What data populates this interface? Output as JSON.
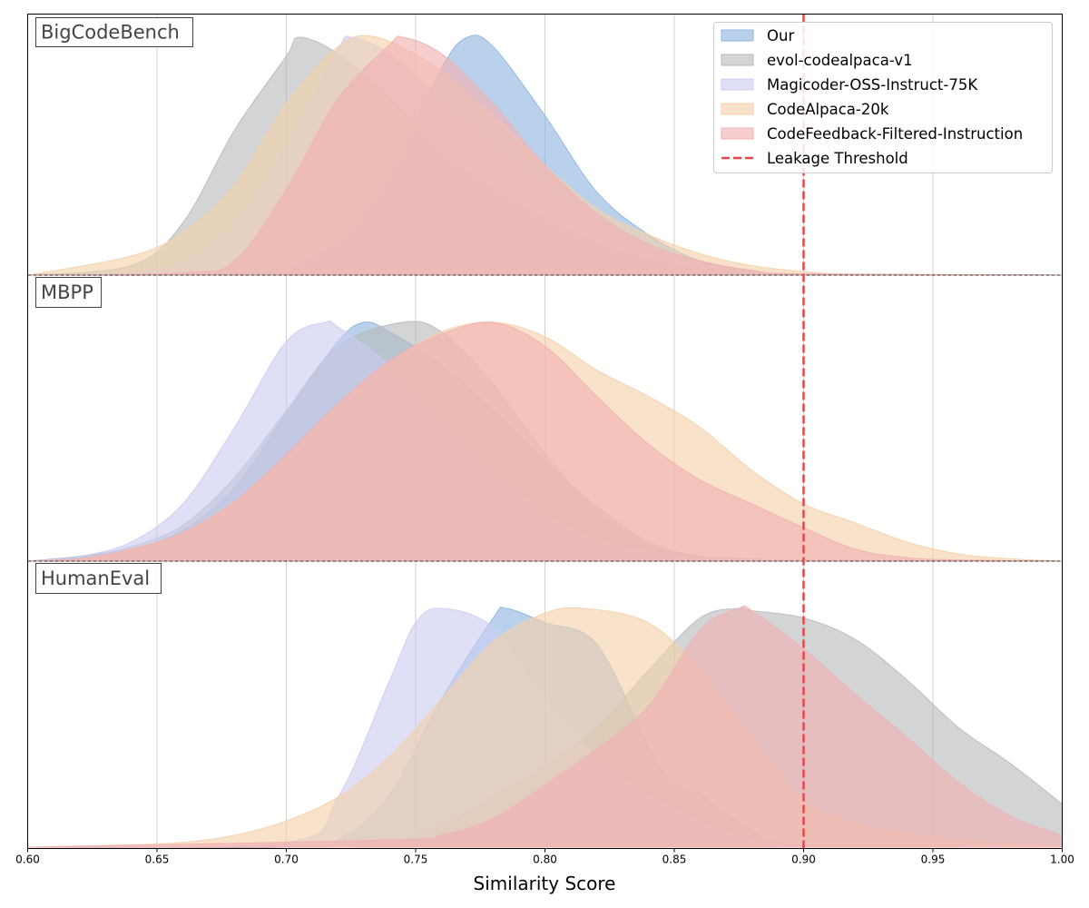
{
  "chart_data": {
    "type": "area",
    "kind": "ridgeline-density",
    "xlabel": "Similarity Score",
    "xlim": [
      0.6,
      1.0
    ],
    "xticks": [
      "0.60",
      "0.65",
      "0.70",
      "0.75",
      "0.80",
      "0.85",
      "0.90",
      "0.95",
      "1.00"
    ],
    "grid": "vertical",
    "legend_position": "top-right",
    "threshold": {
      "name": "Leakage Threshold",
      "x": 0.9,
      "color": "#e8474a",
      "style": "dashed"
    },
    "series_styles": [
      {
        "name": "Our",
        "color": "#8fb4e0"
      },
      {
        "name": "evol-codealpaca-v1",
        "color": "#b8babc"
      },
      {
        "name": "Magicoder-OSS-Instruct-75K",
        "color": "#cccdf0"
      },
      {
        "name": "CodeAlpaca-20k",
        "color": "#f4d0aa"
      },
      {
        "name": "CodeFeedback-Filtered-Instruction",
        "color": "#f2b0b2"
      }
    ],
    "panels": [
      {
        "name": "BigCodeBench",
        "series": [
          {
            "name": "Our",
            "x": [
              0.6,
              0.66,
              0.68,
              0.7,
              0.72,
              0.74,
              0.76,
              0.77,
              0.78,
              0.8,
              0.82,
              0.84,
              0.86,
              0.88,
              0.9,
              1.0
            ],
            "values": [
              0,
              0,
              0.01,
              0.03,
              0.15,
              0.42,
              0.87,
              1.0,
              0.96,
              0.67,
              0.35,
              0.17,
              0.06,
              0.02,
              0.005,
              0
            ]
          },
          {
            "name": "evol-codealpaca-v1",
            "x": [
              0.6,
              0.64,
              0.66,
              0.68,
              0.7,
              0.705,
              0.72,
              0.74,
              0.76,
              0.78,
              0.8,
              0.82,
              0.84,
              0.86,
              0.88,
              0.9,
              1.0
            ],
            "values": [
              0,
              0.04,
              0.22,
              0.61,
              0.92,
              1.0,
              0.93,
              0.74,
              0.52,
              0.37,
              0.24,
              0.14,
              0.07,
              0.03,
              0.01,
              0.005,
              0
            ]
          },
          {
            "name": "Magicoder-OSS-Instruct-75K",
            "x": [
              0.6,
              0.64,
              0.66,
              0.68,
              0.7,
              0.72,
              0.725,
              0.74,
              0.76,
              0.78,
              0.8,
              0.82,
              0.84,
              0.86,
              0.88,
              0.9,
              1.0
            ],
            "values": [
              0,
              0.01,
              0.06,
              0.22,
              0.55,
              0.95,
              1.0,
              0.93,
              0.73,
              0.54,
              0.38,
              0.22,
              0.11,
              0.05,
              0.02,
              0.005,
              0
            ]
          },
          {
            "name": "CodeAlpaca-20k",
            "x": [
              0.6,
              0.64,
              0.66,
              0.68,
              0.7,
              0.72,
              0.735,
              0.76,
              0.78,
              0.8,
              0.82,
              0.84,
              0.86,
              0.88,
              0.9,
              0.92,
              1.0
            ],
            "values": [
              0,
              0.08,
              0.18,
              0.38,
              0.72,
              0.96,
              1.0,
              0.86,
              0.67,
              0.46,
              0.28,
              0.17,
              0.09,
              0.04,
              0.015,
              0.005,
              0
            ]
          },
          {
            "name": "CodeFeedback-Filtered-Instruction",
            "x": [
              0.6,
              0.66,
              0.68,
              0.7,
              0.72,
              0.74,
              0.745,
              0.76,
              0.78,
              0.8,
              0.82,
              0.84,
              0.86,
              0.88,
              0.9,
              1.0
            ],
            "values": [
              0,
              0.01,
              0.06,
              0.36,
              0.74,
              0.97,
              1.0,
              0.93,
              0.72,
              0.46,
              0.26,
              0.13,
              0.06,
              0.02,
              0.005,
              0
            ]
          }
        ]
      },
      {
        "name": "MBPP",
        "series": [
          {
            "name": "Our",
            "x": [
              0.6,
              0.62,
              0.64,
              0.66,
              0.68,
              0.7,
              0.72,
              0.73,
              0.74,
              0.76,
              0.78,
              0.8,
              0.82,
              0.84,
              0.86,
              0.88,
              0.9,
              1.0
            ],
            "values": [
              0,
              0.02,
              0.05,
              0.13,
              0.31,
              0.62,
              0.92,
              1.0,
              0.96,
              0.82,
              0.63,
              0.42,
              0.23,
              0.08,
              0.02,
              0.01,
              0.005,
              0
            ]
          },
          {
            "name": "evol-codealpaca-v1",
            "x": [
              0.6,
              0.62,
              0.64,
              0.66,
              0.68,
              0.7,
              0.72,
              0.745,
              0.76,
              0.78,
              0.8,
              0.82,
              0.84,
              0.86,
              0.88,
              0.9,
              1.0
            ],
            "values": [
              0,
              0.02,
              0.06,
              0.15,
              0.35,
              0.63,
              0.9,
              1.0,
              0.96,
              0.74,
              0.45,
              0.21,
              0.07,
              0.02,
              0.01,
              0.005,
              0
            ]
          },
          {
            "name": "Magicoder-OSS-Instruct-75K",
            "x": [
              0.6,
              0.62,
              0.64,
              0.66,
              0.68,
              0.7,
              0.715,
              0.72,
              0.74,
              0.76,
              0.78,
              0.8,
              0.82,
              0.84,
              0.86,
              0.88,
              1.0
            ],
            "values": [
              0,
              0.02,
              0.08,
              0.24,
              0.56,
              0.92,
              1.0,
              0.98,
              0.82,
              0.58,
              0.38,
              0.2,
              0.09,
              0.04,
              0.015,
              0.005,
              0
            ]
          },
          {
            "name": "CodeAlpaca-20k",
            "x": [
              0.6,
              0.62,
              0.64,
              0.66,
              0.68,
              0.7,
              0.72,
              0.74,
              0.76,
              0.78,
              0.8,
              0.82,
              0.84,
              0.86,
              0.88,
              0.9,
              0.92,
              0.94,
              0.96,
              0.98,
              1.0
            ],
            "values": [
              0,
              0.01,
              0.05,
              0.12,
              0.25,
              0.43,
              0.65,
              0.83,
              0.96,
              1.0,
              0.94,
              0.8,
              0.69,
              0.56,
              0.38,
              0.24,
              0.16,
              0.08,
              0.03,
              0.01,
              0
            ]
          },
          {
            "name": "CodeFeedback-Filtered-Instruction",
            "x": [
              0.6,
              0.62,
              0.64,
              0.66,
              0.68,
              0.7,
              0.72,
              0.74,
              0.76,
              0.78,
              0.8,
              0.82,
              0.84,
              0.86,
              0.88,
              0.9,
              0.92,
              0.94,
              0.96,
              1.0
            ],
            "values": [
              0,
              0.01,
              0.05,
              0.12,
              0.25,
              0.45,
              0.66,
              0.84,
              0.95,
              1.0,
              0.9,
              0.69,
              0.49,
              0.34,
              0.24,
              0.14,
              0.05,
              0.015,
              0.005,
              0
            ]
          }
        ]
      },
      {
        "name": "HumanEval",
        "series": [
          {
            "name": "Our",
            "x": [
              0.6,
              0.7,
              0.72,
              0.74,
              0.76,
              0.78,
              0.785,
              0.8,
              0.82,
              0.84,
              0.85,
              0.86,
              0.88,
              0.9,
              1.0
            ],
            "values": [
              0,
              0,
              0.03,
              0.22,
              0.62,
              0.96,
              1.0,
              0.94,
              0.85,
              0.42,
              0.26,
              0.22,
              0.07,
              0.01,
              0
            ]
          },
          {
            "name": "evol-codealpaca-v1",
            "x": [
              0.6,
              0.72,
              0.74,
              0.76,
              0.78,
              0.8,
              0.82,
              0.84,
              0.86,
              0.875,
              0.88,
              0.9,
              0.92,
              0.94,
              0.96,
              0.98,
              1.0
            ],
            "values": [
              0,
              0,
              0.02,
              0.09,
              0.21,
              0.34,
              0.5,
              0.74,
              0.96,
              1.0,
              0.99,
              0.96,
              0.87,
              0.7,
              0.5,
              0.35,
              0.18
            ]
          },
          {
            "name": "Magicoder-OSS-Instruct-75K",
            "x": [
              0.6,
              0.7,
              0.72,
              0.74,
              0.75,
              0.76,
              0.78,
              0.8,
              0.82,
              0.84,
              0.86,
              0.88,
              0.9,
              1.0
            ],
            "values": [
              0,
              0.02,
              0.21,
              0.7,
              0.94,
              1.0,
              0.92,
              0.62,
              0.38,
              0.22,
              0.11,
              0.03,
              0.01,
              0
            ]
          },
          {
            "name": "CodeAlpaca-20k",
            "x": [
              0.6,
              0.64,
              0.66,
              0.68,
              0.7,
              0.72,
              0.74,
              0.76,
              0.78,
              0.8,
              0.815,
              0.84,
              0.86,
              0.88,
              0.9,
              0.92,
              0.94,
              0.96,
              1.0
            ],
            "values": [
              0,
              0.01,
              0.02,
              0.05,
              0.11,
              0.21,
              0.38,
              0.62,
              0.86,
              0.98,
              1.0,
              0.94,
              0.74,
              0.46,
              0.2,
              0.1,
              0.06,
              0.03,
              0
            ]
          },
          {
            "name": "CodeFeedback-Filtered-Instruction",
            "x": [
              0.6,
              0.74,
              0.76,
              0.78,
              0.8,
              0.82,
              0.84,
              0.86,
              0.875,
              0.88,
              0.9,
              0.92,
              0.94,
              0.96,
              0.98,
              1.0
            ],
            "values": [
              0,
              0.03,
              0.05,
              0.12,
              0.26,
              0.41,
              0.59,
              0.91,
              1.0,
              0.99,
              0.83,
              0.64,
              0.46,
              0.27,
              0.13,
              0.05
            ]
          }
        ]
      }
    ]
  }
}
